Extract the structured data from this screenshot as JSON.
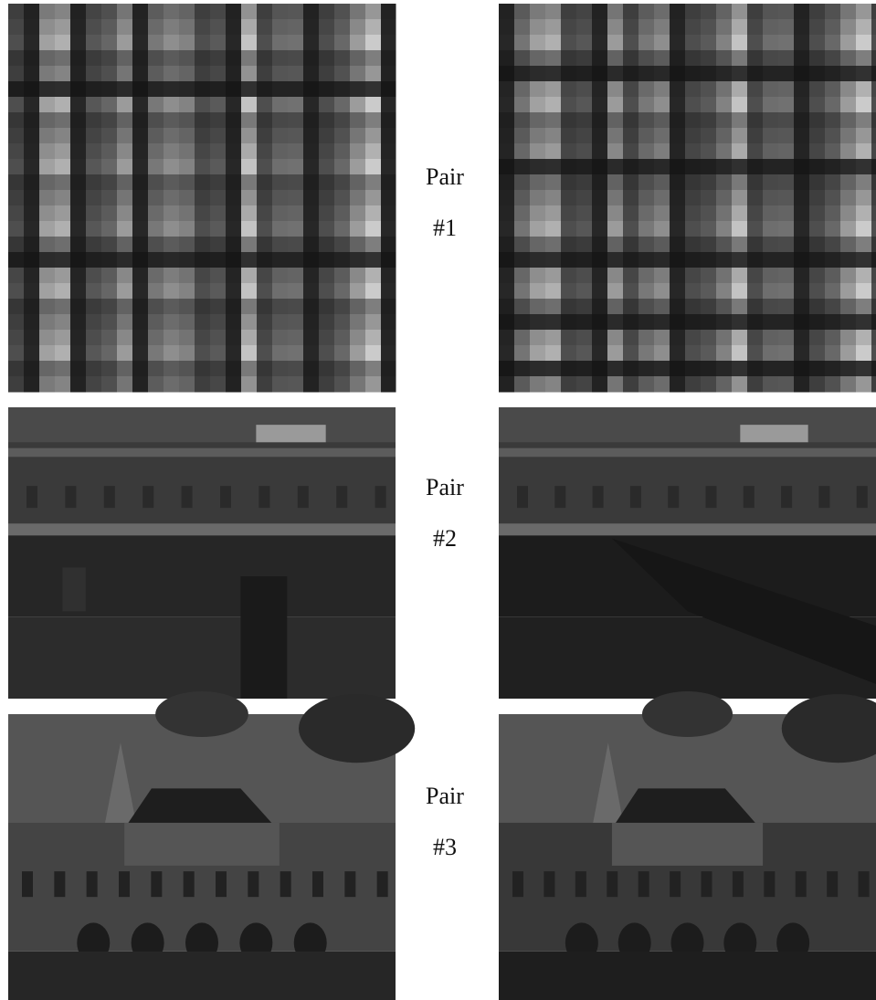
{
  "pairs": [
    {
      "word": "Pair",
      "number": "#1"
    },
    {
      "word": "Pair",
      "number": "#2"
    },
    {
      "word": "Pair",
      "number": "#3"
    }
  ]
}
